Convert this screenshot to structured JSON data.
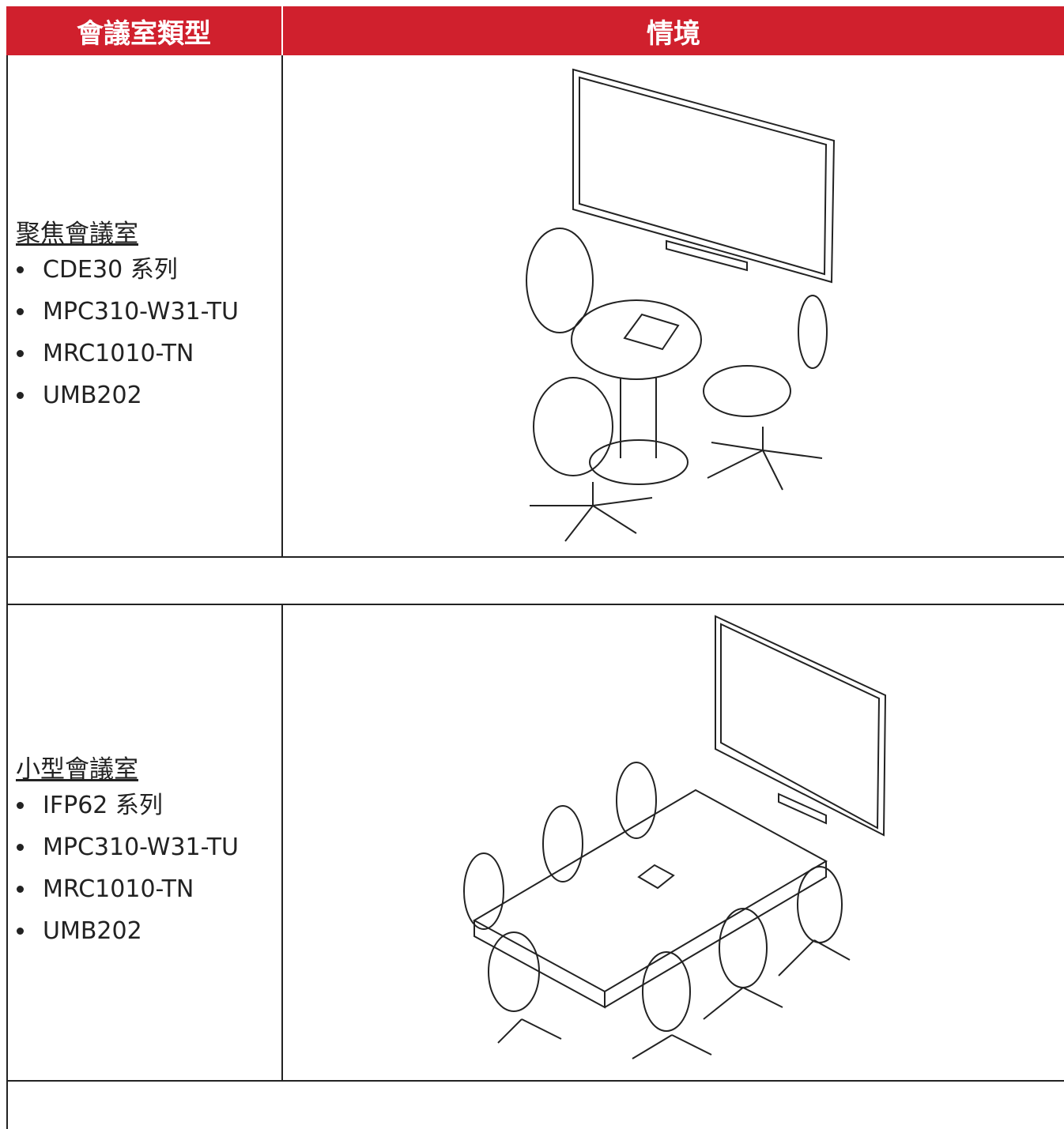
{
  "table": {
    "headers": [
      "會議室類型",
      "情境"
    ],
    "rows": [
      {
        "room_type": "聚焦會議室",
        "items": [
          "CDE30 系列",
          "MPC310-W31-TU",
          "MRC1010-TN",
          "UMB202"
        ]
      },
      {
        "room_type": "小型會議室",
        "items": [
          "IFP62 系列",
          "MPC310-W31-TU",
          "MRC1010-TN",
          "UMB202"
        ]
      }
    ]
  }
}
